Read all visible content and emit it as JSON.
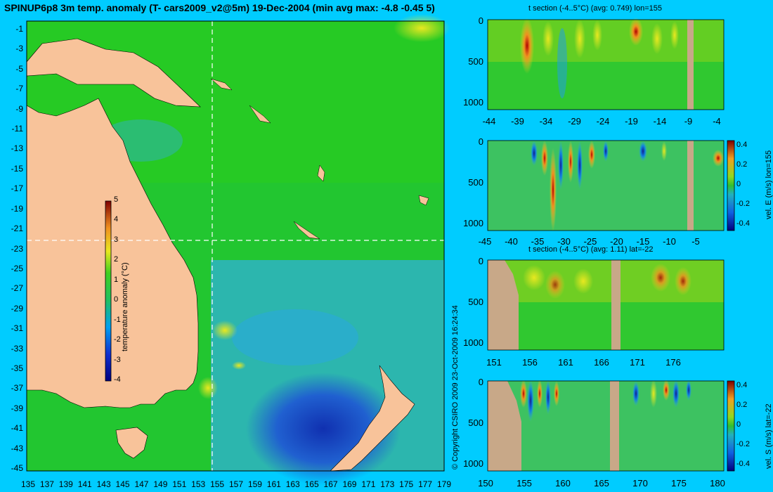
{
  "colors": {
    "background": "#00ccff",
    "land": "#f8c39a",
    "mask": "#c8a888",
    "ocean_base": "#22cc22"
  },
  "main_map": {
    "title": "SPINUP6p8 3m temp. anomaly (T- cars2009_v2@5m) 19-Dec-2004 (min avg max: -4.8 -0.45 5)",
    "lat_ticks": [
      "-1",
      "-3",
      "-5",
      "-7",
      "-9",
      "-11",
      "-13",
      "-15",
      "-17",
      "-19",
      "-21",
      "-23",
      "-25",
      "-27",
      "-29",
      "-31",
      "-33",
      "-35",
      "-37",
      "-39",
      "-41",
      "-43",
      "-45"
    ],
    "lon_ticks": [
      "135",
      "137",
      "139",
      "141",
      "143",
      "145",
      "147",
      "149",
      "151",
      "153",
      "155",
      "157",
      "159",
      "161",
      "163",
      "165",
      "167",
      "169",
      "171",
      "173",
      "175",
      "177",
      "179"
    ],
    "section_lon_label": "155",
    "section_lat_label": "-22",
    "colorbar": {
      "label": "temperature anomaly (°C)",
      "ticks": [
        "5",
        "4",
        "3",
        "2",
        "1",
        "0",
        "-1",
        "-2",
        "-3",
        "-4"
      ]
    }
  },
  "copyright": "© Copyright CSIRO 2009   23-Oct-2009 16:24:34",
  "panels": [
    {
      "id": "t-lon155",
      "title": "t section (-4..5°C) (avg: 0.749) lon=155",
      "y_ticks": [
        "0",
        "500",
        "1000"
      ],
      "x_ticks": [
        "-44",
        "-39",
        "-34",
        "-29",
        "-24",
        "-19",
        "-14",
        "-9",
        "-4"
      ],
      "colorbar": null
    },
    {
      "id": "u-lon155",
      "title": "",
      "y_ticks": [
        "0",
        "500",
        "1000"
      ],
      "x_ticks": [
        "-45",
        "-40",
        "-35",
        "-30",
        "-25",
        "-20",
        "-15",
        "-10",
        "-5"
      ],
      "colorbar": {
        "label": "vel. E (m/s) lon=155",
        "ticks": [
          "0.4",
          "0.2",
          "0",
          "-0.2",
          "-0.4"
        ]
      }
    },
    {
      "id": "t-lat22",
      "title": "t section (-4..5°C) (avg: 1.11) lat=-22",
      "y_ticks": [
        "0",
        "500",
        "1000"
      ],
      "x_ticks": [
        "151",
        "156",
        "161",
        "166",
        "171",
        "176"
      ],
      "colorbar": null
    },
    {
      "id": "v-lat22",
      "title": "",
      "y_ticks": [
        "0",
        "500",
        "1000"
      ],
      "x_ticks": [
        "150",
        "155",
        "160",
        "165",
        "170",
        "175",
        "180"
      ],
      "colorbar": {
        "label": "vel. S (m/s) lat=-22",
        "ticks": [
          "0.4",
          "0.2",
          "0",
          "-0.2",
          "-0.4"
        ]
      }
    }
  ],
  "chart_data": [
    {
      "type": "heatmap",
      "title": "SPINUP6p8 3m temp. anomaly (T- cars2009_v2@5m) 19-Dec-2004 (min avg max: -4.8 -0.45 5)",
      "xlabel": "",
      "ylabel": "",
      "xlim": [
        135,
        180
      ],
      "ylim": [
        -45,
        0
      ],
      "value_range": [
        -4,
        5
      ],
      "stats": {
        "min": -4.8,
        "avg": -0.45,
        "max": 5
      },
      "colorbar_label": "temperature anomaly (°C)",
      "section_lines": {
        "lon": 155,
        "lat": -22
      }
    },
    {
      "type": "heatmap",
      "title": "t section (-4..5°C) (avg: 0.749) lon=155",
      "xlim": [
        -45,
        0
      ],
      "ylim": [
        1050,
        0
      ],
      "value_range": [
        -4,
        5
      ],
      "avg": 0.749
    },
    {
      "type": "heatmap",
      "title": "",
      "colorbar_label": "vel. E (m/s) lon=155",
      "xlim": [
        -45,
        0
      ],
      "ylim": [
        1050,
        0
      ],
      "value_range": [
        -0.4,
        0.4
      ]
    },
    {
      "type": "heatmap",
      "title": "t section (-4..5°C) (avg: 1.11) lat=-22",
      "xlim": [
        150,
        180
      ],
      "ylim": [
        1050,
        0
      ],
      "value_range": [
        -4,
        5
      ],
      "avg": 1.11
    },
    {
      "type": "heatmap",
      "title": "",
      "colorbar_label": "vel. S (m/s) lat=-22",
      "xlim": [
        150,
        180
      ],
      "ylim": [
        1050,
        0
      ],
      "value_range": [
        -0.4,
        0.4
      ]
    }
  ]
}
